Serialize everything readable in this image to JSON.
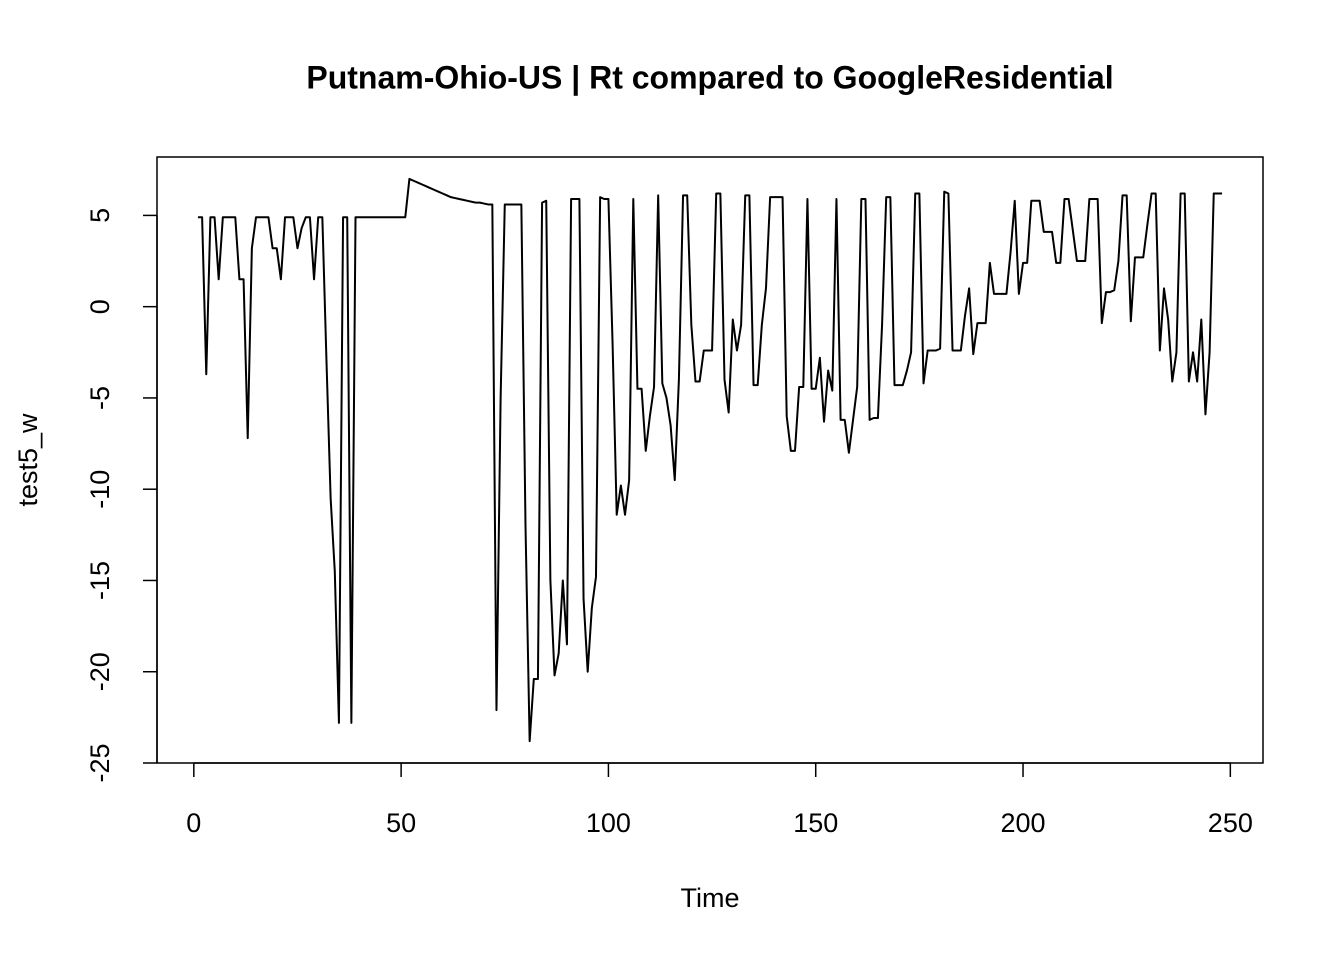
{
  "chart_data": {
    "type": "line",
    "title": "Putnam-Ohio-US | Rt compared to GoogleResidential",
    "x_label": "Time",
    "y_label": "test5_w",
    "color": "#000000",
    "x": [
      1,
      2,
      3,
      4,
      5,
      6,
      7,
      8,
      9,
      10,
      11,
      12,
      13,
      14,
      15,
      16,
      17,
      18,
      19,
      20,
      21,
      22,
      23,
      24,
      25,
      26,
      27,
      28,
      29,
      30,
      31,
      32,
      33,
      34,
      35,
      36,
      37,
      38,
      39,
      40,
      41,
      42,
      43,
      44,
      45,
      46,
      47,
      48,
      49,
      50,
      51,
      52,
      53,
      54,
      55,
      56,
      57,
      58,
      59,
      60,
      61,
      62,
      63,
      64,
      65,
      66,
      67,
      68,
      69,
      70,
      71,
      72,
      73,
      74,
      75,
      76,
      77,
      78,
      79,
      80,
      81,
      82,
      83,
      84,
      85,
      86,
      87,
      88,
      89,
      90,
      91,
      92,
      93,
      94,
      95,
      96,
      97,
      98,
      99,
      100,
      101,
      102,
      103,
      104,
      105,
      106,
      107,
      108,
      109,
      110,
      111,
      112,
      113,
      114,
      115,
      116,
      117,
      118,
      119,
      120,
      121,
      122,
      123,
      124,
      125,
      126,
      127,
      128,
      129,
      130,
      131,
      132,
      133,
      134,
      135,
      136,
      137,
      138,
      139,
      140,
      141,
      142,
      143,
      144,
      145,
      146,
      147,
      148,
      149,
      150,
      151,
      152,
      153,
      154,
      155,
      156,
      157,
      158,
      159,
      160,
      161,
      162,
      163,
      164,
      165,
      166,
      167,
      168,
      169,
      170,
      171,
      172,
      173,
      174,
      175,
      176,
      177,
      178,
      179,
      180,
      181,
      182,
      183,
      184,
      185,
      186,
      187,
      188,
      189,
      190,
      191,
      192,
      193,
      194,
      195,
      196,
      197,
      198,
      199,
      200,
      201,
      202,
      203,
      204,
      205,
      206,
      207,
      208,
      209,
      210,
      211,
      212,
      213,
      214,
      215,
      216,
      217,
      218,
      219,
      220,
      221,
      222,
      223,
      224,
      225,
      226,
      227,
      228,
      229,
      230,
      231,
      232,
      233,
      234,
      235,
      236,
      237,
      238,
      239,
      240,
      241,
      242,
      243,
      244,
      245,
      246,
      247,
      248
    ],
    "values": [
      4.9,
      4.9,
      -3.7,
      4.9,
      4.9,
      1.5,
      4.9,
      4.9,
      4.9,
      4.9,
      1.5,
      1.5,
      -7.2,
      3.2,
      4.9,
      4.9,
      4.9,
      4.9,
      3.2,
      3.2,
      1.5,
      4.9,
      4.9,
      4.9,
      3.2,
      4.3,
      4.9,
      4.9,
      1.5,
      4.9,
      4.9,
      -3,
      -10.5,
      -14.5,
      -22.8,
      4.9,
      4.9,
      -22.8,
      4.9,
      4.9,
      4.9,
      4.9,
      4.9,
      4.9,
      4.9,
      4.9,
      4.9,
      4.9,
      4.9,
      4.9,
      4.9,
      7.0,
      6.9,
      6.8,
      6.7,
      6.6,
      6.5,
      6.4,
      6.3,
      6.2,
      6.1,
      6.0,
      5.95,
      5.9,
      5.85,
      5.8,
      5.75,
      5.7,
      5.7,
      5.65,
      5.6,
      5.6,
      -22.1,
      -5,
      5.6,
      5.6,
      5.6,
      5.6,
      5.6,
      -12,
      -23.8,
      -20.4,
      -20.4,
      5.7,
      5.8,
      -15,
      -20.2,
      -19,
      -15,
      -18.5,
      5.9,
      5.9,
      5.9,
      -16,
      -20,
      -16.5,
      -14.8,
      6.0,
      5.9,
      5.9,
      -2,
      -11.4,
      -9.8,
      -11.4,
      -9.5,
      5.9,
      -4.5,
      -4.5,
      -7.9,
      -6,
      -4.4,
      6.1,
      -4.2,
      -5,
      -6.5,
      -9.5,
      -4,
      6.1,
      6.1,
      -1,
      -4.1,
      -4.1,
      -2.4,
      -2.4,
      -2.4,
      6.2,
      6.2,
      -4,
      -5.8,
      -0.7,
      -2.4,
      -1,
      6.1,
      6.1,
      -4.3,
      -4.3,
      -1,
      1,
      6.0,
      6.0,
      6.0,
      6.0,
      -6,
      -7.9,
      -7.9,
      -4.4,
      -4.4,
      5.9,
      -4.5,
      -4.5,
      -2.8,
      -6.3,
      -3.5,
      -4.6,
      5.9,
      -6.2,
      -6.2,
      -8,
      -6.2,
      -4.4,
      5.9,
      5.9,
      -6.2,
      -6.1,
      -6.1,
      -1,
      6.0,
      6.0,
      -4.3,
      -4.3,
      -4.3,
      -3.5,
      -2.5,
      6.2,
      6.2,
      -4.2,
      -2.4,
      -2.4,
      -2.4,
      -2.3,
      6.3,
      6.2,
      -2.4,
      -2.4,
      -2.4,
      -0.5,
      1,
      -2.6,
      -0.9,
      -0.9,
      -0.9,
      2.4,
      0.7,
      0.7,
      0.7,
      0.7,
      3,
      5.8,
      0.7,
      2.4,
      2.4,
      5.8,
      5.8,
      5.8,
      4.1,
      4.1,
      4.1,
      2.4,
      2.4,
      5.9,
      5.9,
      4.2,
      2.5,
      2.5,
      2.5,
      5.9,
      5.9,
      5.9,
      -0.9,
      0.8,
      0.8,
      0.9,
      2.5,
      6.1,
      6.1,
      -0.8,
      2.7,
      2.7,
      2.7,
      4.5,
      6.2,
      6.2,
      -2.4,
      1.0,
      -0.7,
      -4.1,
      -2.5,
      6.2,
      6.2,
      -4.1,
      -2.5,
      -4.1,
      -0.7,
      -5.9,
      -2.5,
      6.2,
      6.2,
      6.2
    ],
    "xlim": [
      -8.88,
      257.88
    ],
    "xticks": [
      0,
      50,
      100,
      150,
      200,
      250
    ],
    "ylim": [
      -25.0,
      8.2
    ],
    "yticks": [
      -25,
      -20,
      -15,
      -10,
      -5,
      0,
      5
    ]
  }
}
